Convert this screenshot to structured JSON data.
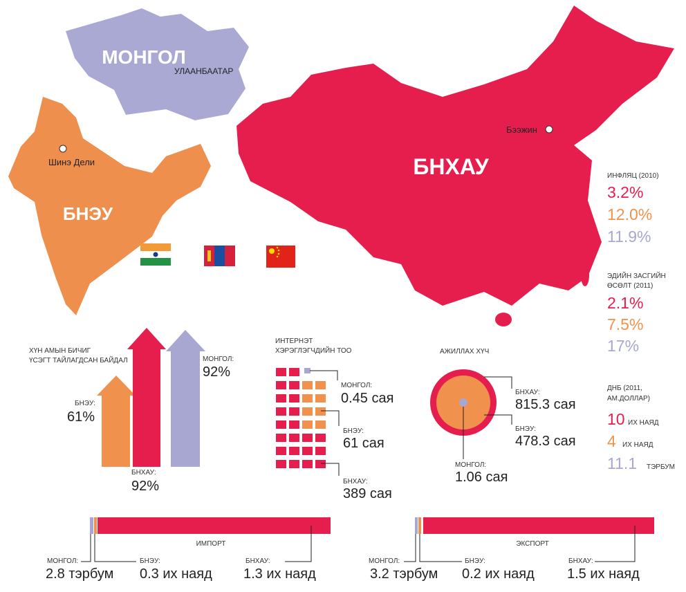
{
  "map": {
    "mongolia": {
      "name": "МОНГОЛ",
      "capital": "УЛААНБААТАР"
    },
    "china": {
      "name": "БНХАУ",
      "capital": "Бээжин"
    },
    "india": {
      "name": "БНЭУ",
      "capital": "Шинэ Дели"
    }
  },
  "indicators": {
    "inflation": {
      "title": "ИНФЛЯЦ (2010)",
      "values": [
        "3.2%",
        "12.0%",
        "11.9%"
      ]
    },
    "growth": {
      "title": [
        "ЭДИЙН ЗАСГИЙН",
        "ӨСӨЛТ (2011)"
      ],
      "values": [
        "2.1%",
        "7.5%",
        "17%"
      ]
    },
    "gdp": {
      "title": [
        "ДНБ (2011,",
        "АМ.ДОЛЛАР)"
      ],
      "items": [
        {
          "value": "10",
          "unit": "ИХ НАЯД"
        },
        {
          "value": "4",
          "unit": "ИХ НАЯД"
        },
        {
          "value": "11.1",
          "unit": "ТЭРБУМ"
        }
      ]
    }
  },
  "literacy": {
    "title": [
      "ХҮН АМЫН БИЧИГ",
      "ҮСЭГТ ТАЙЛАГДСАН БАЙДАЛ"
    ],
    "items": [
      {
        "label": "БНЭУ:",
        "value": "61%"
      },
      {
        "label": "БНХАУ:",
        "value": "92%"
      },
      {
        "label": "МОНГОЛ:",
        "value": "92%"
      }
    ]
  },
  "internet": {
    "title": [
      "ИНТЕРНЭТ",
      "ХЭРЭГЛЭГЧДИЙН ТОО"
    ],
    "items": [
      {
        "label": "МОНГОЛ:",
        "value": "0.45 сая"
      },
      {
        "label": "БНЭУ:",
        "value": "61 сая"
      },
      {
        "label": "БНХАУ:",
        "value": "389 сая"
      }
    ]
  },
  "labor": {
    "title": "АЖИЛЛАХ ХҮЧ",
    "items": [
      {
        "label": "БНХАУ:",
        "value": "815.3 сая"
      },
      {
        "label": "БНЭУ:",
        "value": "478.3 сая"
      },
      {
        "label": "МОНГОЛ:",
        "value": "1.06 сая"
      }
    ]
  },
  "import": {
    "title": "ИМПОРТ",
    "items": [
      {
        "label": "МОНГОЛ:",
        "value": "2.8 тэрбум"
      },
      {
        "label": "БНЭУ:",
        "value": "0.3 их наяд"
      },
      {
        "label": "БНХАУ:",
        "value": "1.3 их наяд"
      }
    ]
  },
  "export": {
    "title": "ЭКСПОРТ",
    "items": [
      {
        "label": "МОНГОЛ:",
        "value": "3.2 тэрбум"
      },
      {
        "label": "БНЭУ:",
        "value": "0.2 их наяд"
      },
      {
        "label": "БНХАУ:",
        "value": "1.5 их наяд"
      }
    ]
  }
}
